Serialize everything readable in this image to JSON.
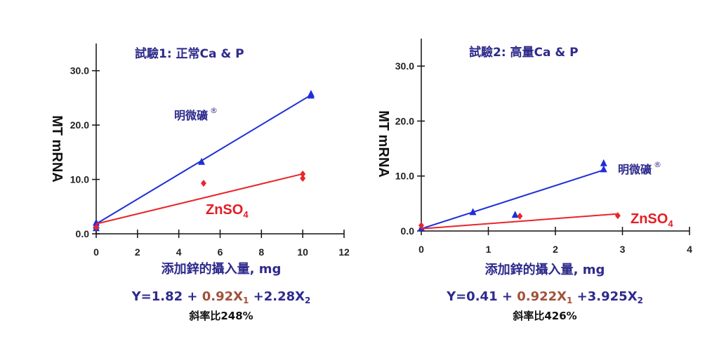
{
  "colors": {
    "blue": "#1f2ed8",
    "red": "#e8262b",
    "navy": "#2e2a8c",
    "brown": "#a0523a"
  },
  "chart_data": [
    {
      "type": "scatter",
      "title": "試驗1: 正常Ca & P",
      "xlabel": "添加鋅的攝入量, mg",
      "ylabel": "MT mRNA",
      "xlim": [
        0,
        12
      ],
      "ylim": [
        0,
        35
      ],
      "xticks": [
        "0",
        "2",
        "4",
        "6",
        "8",
        "10",
        "12"
      ],
      "xtick_values": [
        0,
        2,
        4,
        6,
        8,
        10,
        12
      ],
      "yticks": [
        "0.0",
        "10.0",
        "20.0",
        "30.0"
      ],
      "ytick_values": [
        0,
        10,
        20,
        30
      ],
      "series": [
        {
          "name": "明微礦",
          "sup": "®",
          "color": "#1f2ed8",
          "marker": "triangle",
          "points": [
            [
              0,
              1.5
            ],
            [
              0,
              2.0
            ],
            [
              0,
              1.0
            ],
            [
              5.1,
              13.2
            ],
            [
              10.4,
              25.7
            ],
            [
              10.4,
              25.4
            ]
          ],
          "fit": {
            "intercept": 1.82,
            "slope": 2.28,
            "xmax": 10.4
          }
        },
        {
          "name": "ZnSO",
          "sub": "4",
          "color": "#e8262b",
          "marker": "diamond",
          "points": [
            [
              0,
              1.2
            ],
            [
              5.2,
              9.3
            ],
            [
              10,
              10.2
            ],
            [
              10,
              11.0
            ]
          ],
          "fit": {
            "intercept": 1.82,
            "slope": 0.92,
            "xmax": 10
          }
        }
      ],
      "equation": {
        "p1": "Y=1.82 + ",
        "p2": "0.92X",
        "s2": "1",
        "p3": " +2.28X",
        "s3": "2"
      },
      "ratio": "斜率比248%"
    },
    {
      "type": "scatter",
      "title": "試驗2: 高量Ca & P",
      "xlabel": "添加鋅的攝入量, mg",
      "ylabel": "MT mRNA",
      "xlim": [
        0,
        4
      ],
      "ylim": [
        0,
        35
      ],
      "xticks": [
        "0",
        "1",
        "2",
        "3",
        "4"
      ],
      "xtick_values": [
        0,
        1,
        2,
        3,
        4
      ],
      "yticks": [
        "0.0",
        "10.0",
        "20.0",
        "30.0"
      ],
      "ytick_values": [
        0,
        10,
        20,
        30
      ],
      "series": [
        {
          "name": "明微礦",
          "sup": "®",
          "color": "#1f2ed8",
          "marker": "triangle",
          "points": [
            [
              0,
              0.5
            ],
            [
              0.77,
              3.4
            ],
            [
              1.4,
              2.9
            ],
            [
              2.72,
              12.3
            ],
            [
              2.72,
              11.2
            ]
          ],
          "fit": {
            "intercept": 0.41,
            "slope": 3.925,
            "xmax": 2.72
          }
        },
        {
          "name": "ZnSO",
          "sub": "4",
          "color": "#e8262b",
          "marker": "diamond",
          "points": [
            [
              0,
              1.0
            ],
            [
              1.47,
              2.7
            ],
            [
              2.93,
              2.8
            ]
          ],
          "fit": {
            "intercept": 0.41,
            "slope": 0.922,
            "xmax": 2.93
          }
        }
      ],
      "equation": {
        "p1": "Y=0.41 + ",
        "p2": "0.922X",
        "s2": "1",
        "p3": " +3.925X",
        "s3": "2"
      },
      "ratio": "斜率比426%"
    }
  ]
}
